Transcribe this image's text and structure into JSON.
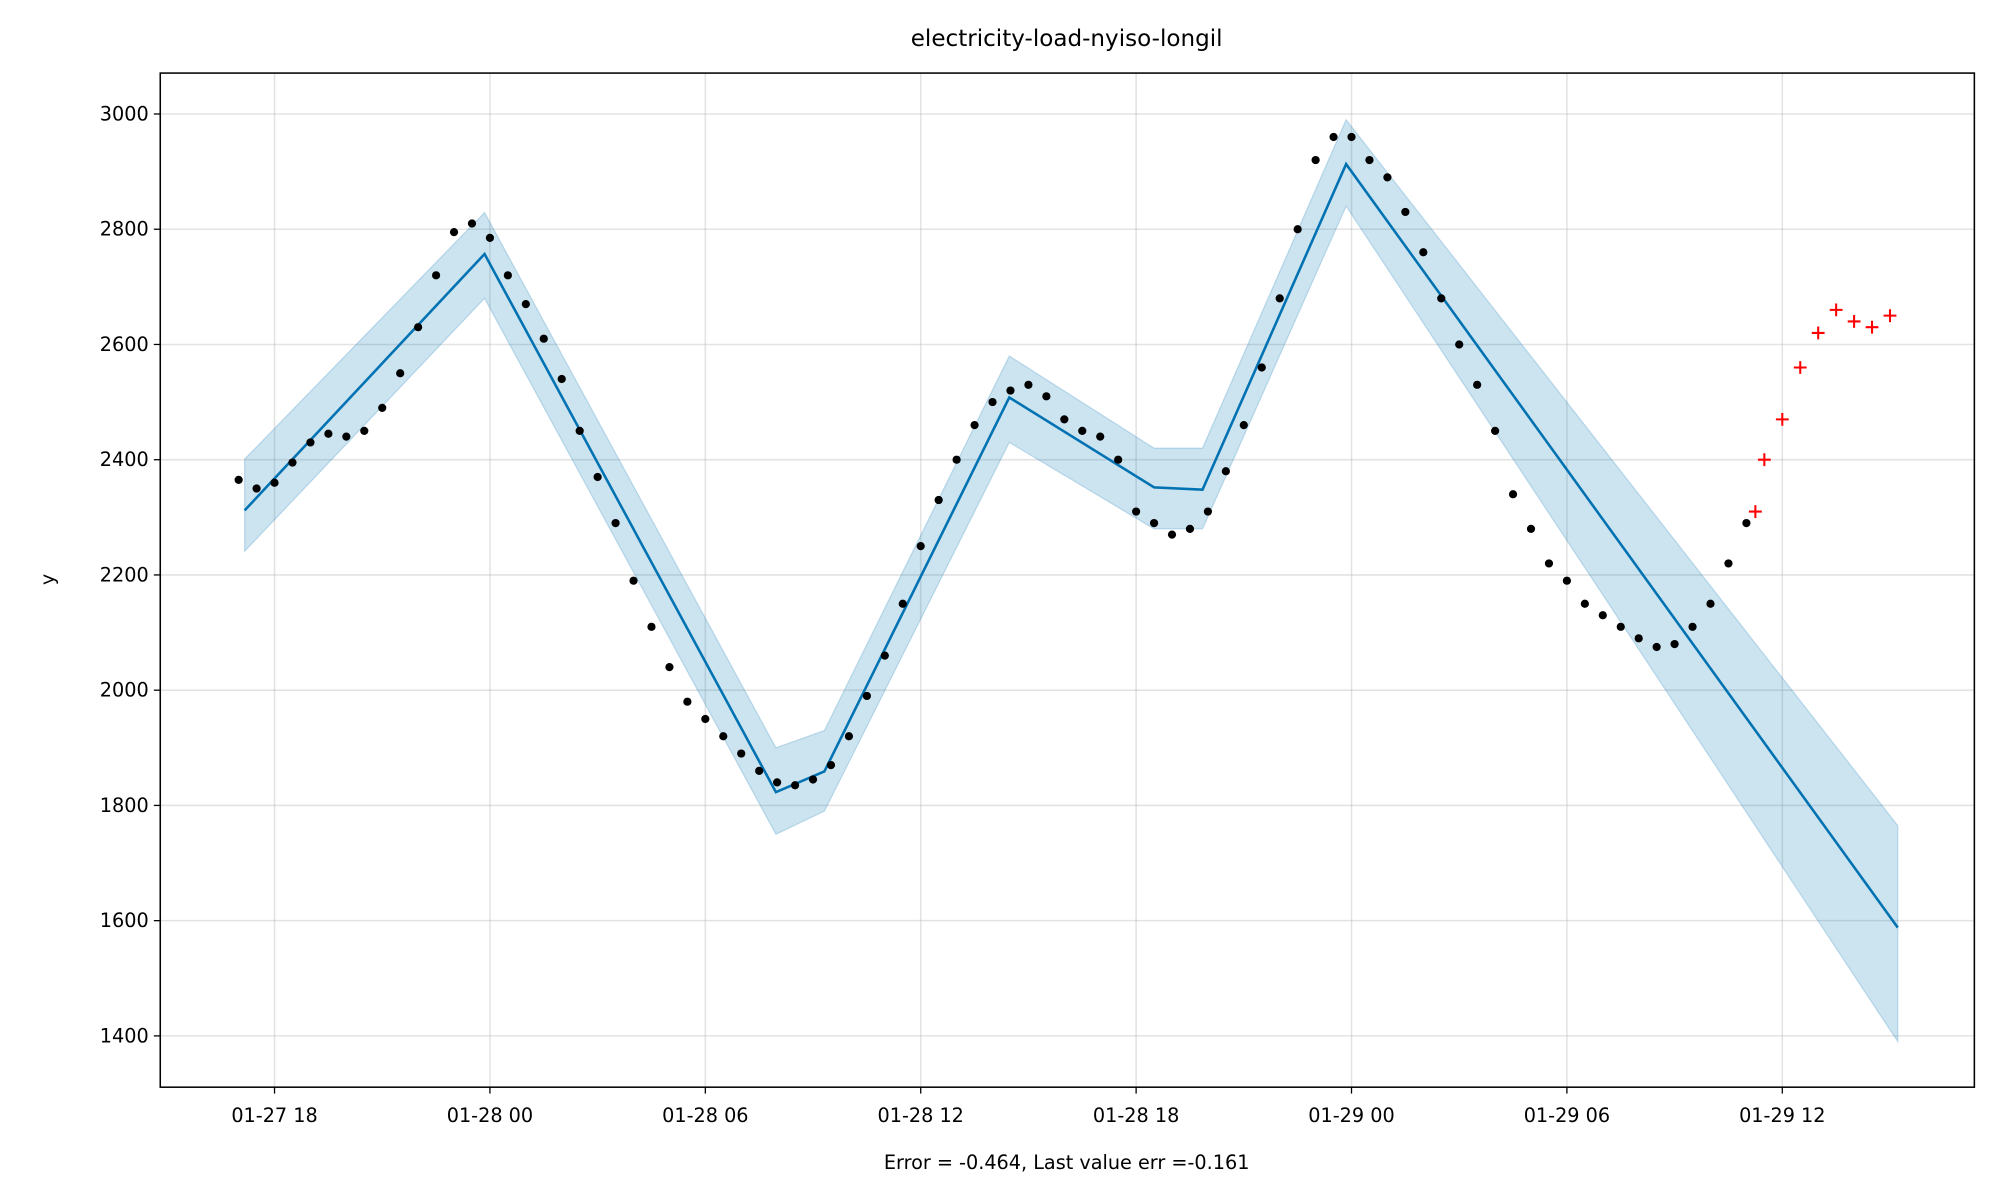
{
  "chart_data": {
    "type": "line",
    "title": "electricity-load-nyiso-longil",
    "xlabel": "Error = -0.464, Last value err =-0.161",
    "ylabel": "y",
    "grid": true,
    "xlim": [
      "01-27 14:49",
      "01-29 17:21"
    ],
    "xticks": [
      "01-27 18",
      "01-28 00",
      "01-28 06",
      "01-28 12",
      "01-28 18",
      "01-29 00",
      "01-29 06",
      "01-29 12"
    ],
    "ylim": [
      1311,
      3071
    ],
    "yticks": [
      1400,
      1600,
      1800,
      2000,
      2200,
      2400,
      2600,
      2800,
      3000
    ],
    "series": [
      {
        "type": "scatter",
        "marker": "o",
        "color": "#000000",
        "x": [
          "01-27 17:00",
          "01-27 17:30",
          "01-27 18:00",
          "01-27 18:30",
          "01-27 19:00",
          "01-27 19:30",
          "01-27 20:00",
          "01-27 20:30",
          "01-27 21:00",
          "01-27 21:30",
          "01-27 22:00",
          "01-27 22:30",
          "01-27 23:00",
          "01-27 23:30",
          "01-28 00:00",
          "01-28 00:30",
          "01-28 01:00",
          "01-28 01:30",
          "01-28 02:00",
          "01-28 02:30",
          "01-28 03:00",
          "01-28 03:30",
          "01-28 04:00",
          "01-28 04:30",
          "01-28 05:00",
          "01-28 05:30",
          "01-28 06:00",
          "01-28 06:30",
          "01-28 07:00",
          "01-28 07:30",
          "01-28 08:00",
          "01-28 08:30",
          "01-28 09:00",
          "01-28 09:30",
          "01-28 10:00",
          "01-28 10:30",
          "01-28 11:00",
          "01-28 11:30",
          "01-28 12:00",
          "01-28 12:30",
          "01-28 13:00",
          "01-28 13:30",
          "01-28 14:00",
          "01-28 14:30",
          "01-28 15:00",
          "01-28 15:30",
          "01-28 16:00",
          "01-28 16:30",
          "01-28 17:00",
          "01-28 17:30",
          "01-28 18:00",
          "01-28 18:30",
          "01-28 19:00",
          "01-28 19:30",
          "01-28 20:00",
          "01-28 20:30",
          "01-28 21:00",
          "01-28 21:30",
          "01-28 22:00",
          "01-28 22:30",
          "01-28 23:00",
          "01-28 23:30",
          "01-29 00:00",
          "01-29 00:30",
          "01-29 01:00",
          "01-29 01:30",
          "01-29 02:00",
          "01-29 02:30",
          "01-29 03:00",
          "01-29 03:30",
          "01-29 04:00",
          "01-29 04:30",
          "01-29 05:00",
          "01-29 05:30",
          "01-29 06:00",
          "01-29 06:30",
          "01-29 07:00",
          "01-29 07:30",
          "01-29 08:00",
          "01-29 08:30",
          "01-29 09:00",
          "01-29 09:30",
          "01-29 10:00",
          "01-29 10:30",
          "01-29 11:00"
        ],
        "values": [
          2365,
          2350,
          2360,
          2395,
          2430,
          2445,
          2440,
          2450,
          2490,
          2550,
          2630,
          2720,
          2795,
          2810,
          2785,
          2720,
          2670,
          2610,
          2540,
          2450,
          2370,
          2290,
          2190,
          2110,
          2040,
          1980,
          1950,
          1920,
          1890,
          1860,
          1840,
          1835,
          1845,
          1870,
          1920,
          1990,
          2060,
          2150,
          2250,
          2330,
          2400,
          2460,
          2500,
          2520,
          2530,
          2510,
          2470,
          2450,
          2440,
          2400,
          2310,
          2290,
          2270,
          2280,
          2310,
          2380,
          2460,
          2560,
          2680,
          2800,
          2920,
          2960,
          2960,
          2920,
          2890,
          2830,
          2760,
          2680,
          2600,
          2530,
          2450,
          2340,
          2280,
          2220,
          2190,
          2150,
          2130,
          2110,
          2090,
          2075,
          2080,
          2110,
          2150,
          2220,
          2290
        ]
      },
      {
        "type": "scatter",
        "marker": "+",
        "color": "#ff0000",
        "x": [
          "01-29 11:15",
          "01-29 11:30",
          "01-29 12:00",
          "01-29 12:30",
          "01-29 13:00",
          "01-29 13:30",
          "01-29 14:00",
          "01-29 14:30",
          "01-29 15:00"
        ],
        "values": [
          2310,
          2400,
          2470,
          2560,
          2620,
          2660,
          2640,
          2630,
          2650
        ]
      },
      {
        "type": "line",
        "color": "#0072b2",
        "x": [
          "01-27 17:10",
          "01-27 23:51",
          "01-28 07:58",
          "01-28 09:19",
          "01-28 14:28",
          "01-28 18:30",
          "01-28 19:51",
          "01-28 23:51",
          "01-29 15:13"
        ],
        "values": [
          2312,
          2757,
          1823,
          1859,
          2508,
          2352,
          2348,
          2913,
          1588
        ],
        "lower": [
          2241,
          2680,
          1750,
          1790,
          2430,
          2280,
          2280,
          2840,
          1390
        ],
        "upper": [
          2401,
          2829,
          1900,
          1930,
          2580,
          2420,
          2420,
          2990,
          1765
        ]
      }
    ]
  }
}
